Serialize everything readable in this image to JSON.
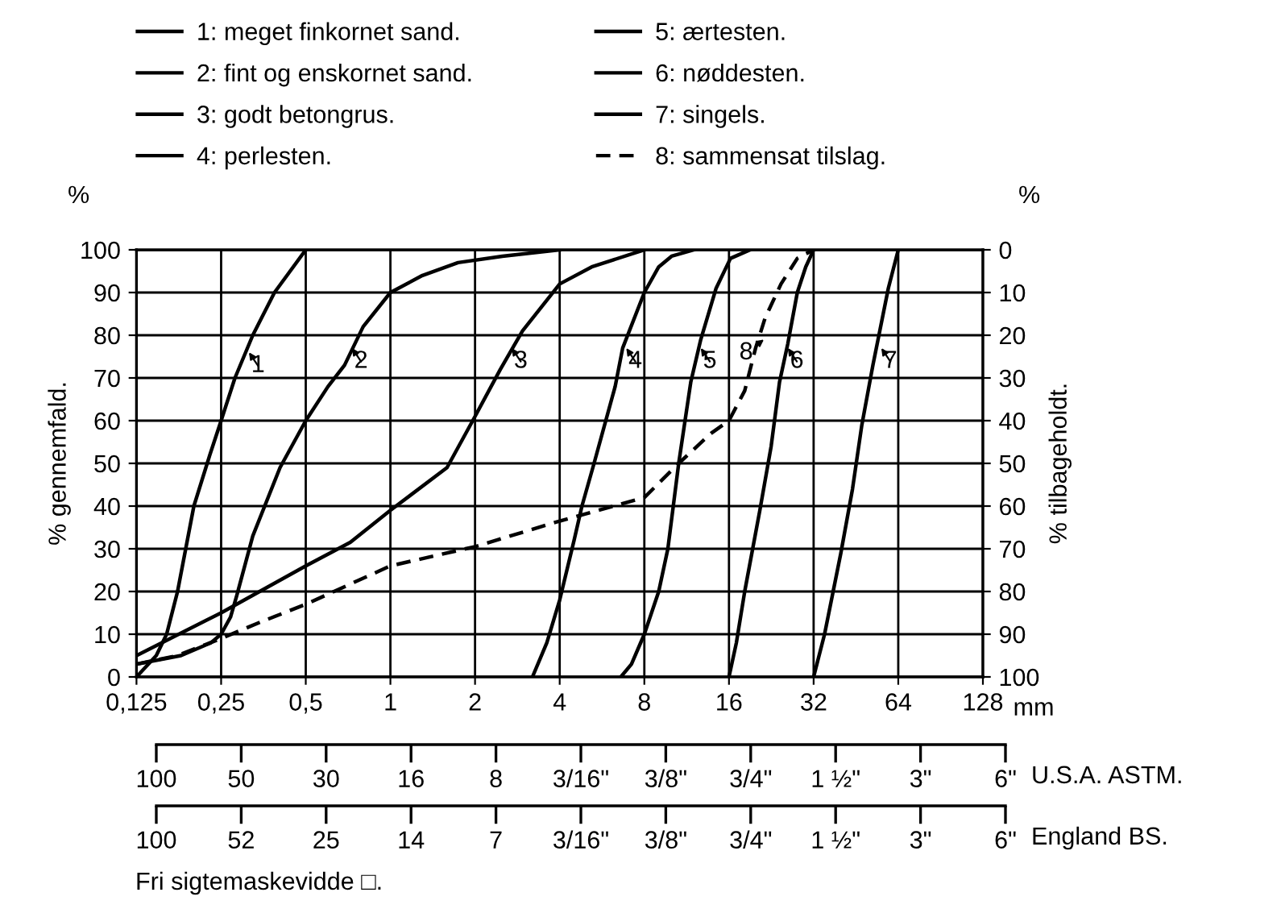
{
  "chart_data": [
    {
      "type": "line",
      "xlabel": "mm",
      "ylabel": "% gennemfald.",
      "y2label": "% tilbageholdt.",
      "log": "x",
      "grid": true,
      "legend": "top",
      "marker": "none",
      "xlim": [
        0.125,
        128
      ],
      "xticks": [
        {
          "value": 0.125,
          "label": "0,125"
        },
        {
          "value": 0.25,
          "label": "0,25"
        },
        {
          "value": 0.5,
          "label": "0,5"
        },
        1,
        2,
        4,
        8,
        16,
        32,
        64,
        128
      ],
      "ylim": [
        0,
        100
      ],
      "yticks": [
        0,
        10,
        20,
        30,
        40,
        50,
        60,
        70,
        80,
        90,
        100
      ],
      "y2lim": [
        100,
        0
      ],
      "y2ticks": [
        0,
        10,
        20,
        30,
        40,
        50,
        60,
        70,
        80,
        90,
        100
      ],
      "series": [
        {
          "name": "1: meget finkornet sand.",
          "color": "#000000",
          "line_style": "solid",
          "x": [
            0.125,
            0.147,
            0.16,
            0.175,
            0.2,
            0.228,
            0.25,
            0.28,
            0.324,
            0.387,
            0.5
          ],
          "values": [
            0,
            5,
            10,
            20,
            40,
            52,
            60,
            70,
            80,
            90,
            100
          ]
        },
        {
          "name": "2: fint og enskornet sand.",
          "color": "#000000",
          "line_style": "solid",
          "x": [
            0.125,
            0.18,
            0.23,
            0.25,
            0.27,
            0.284,
            0.324,
            0.405,
            0.5,
            0.6,
            0.687,
            0.8,
            1,
            1.3,
            1.74,
            2.5,
            4
          ],
          "values": [
            3,
            5,
            8,
            10,
            14,
            19,
            33,
            49,
            60,
            68,
            73,
            82,
            90,
            94,
            97,
            98.5,
            100
          ]
        },
        {
          "name": "3: godt betongrus.",
          "color": "#000000",
          "line_style": "solid",
          "x": [
            0.125,
            0.25,
            0.5,
            0.72,
            1,
            1.59,
            2,
            2.46,
            2.95,
            4,
            5.2,
            8
          ],
          "values": [
            5,
            15,
            26,
            31.5,
            39,
            49,
            61,
            72,
            81,
            92,
            96,
            100
          ]
        },
        {
          "name": "4: perlesten.",
          "color": "#000000",
          "line_style": "solid",
          "x": [
            3.2,
            3.6,
            4,
            4.5,
            4.8,
            5.3,
            6.3,
            6.7,
            8,
            9,
            10,
            12
          ],
          "values": [
            0,
            8,
            18,
            32,
            40,
            50,
            68,
            77,
            90,
            96,
            98.5,
            100
          ]
        },
        {
          "name": "5: ærtesten.",
          "color": "#000000",
          "line_style": "solid",
          "x": [
            6.6,
            7.2,
            8,
            9,
            9.7,
            10.6,
            11.7,
            12.7,
            14.4,
            16.2,
            19
          ],
          "values": [
            0,
            3,
            10,
            20,
            30,
            50,
            69,
            79,
            91,
            98,
            100
          ]
        },
        {
          "name": "6: nøddesten.",
          "color": "#000000",
          "line_style": "solid",
          "x": [
            16,
            17,
            18.2,
            20.6,
            22.6,
            24.2,
            25.9,
            28,
            30,
            32
          ],
          "values": [
            0,
            8,
            20,
            39,
            54,
            69,
            78,
            90,
            96,
            100
          ]
        },
        {
          "name": "7: singels.",
          "color": "#000000",
          "line_style": "solid",
          "x": [
            32,
            35,
            40,
            44,
            47.5,
            52,
            59,
            64
          ],
          "values": [
            0,
            10,
            29,
            44,
            59,
            73,
            91,
            100
          ]
        },
        {
          "name": "8: sammensat tilslag.",
          "color": "#000000",
          "line_style": "dashed",
          "x": [
            0.125,
            0.175,
            0.25,
            0.35,
            0.5,
            1,
            2,
            4,
            8,
            10.6,
            13.8,
            16,
            18.2,
            19.9,
            21.5,
            24.5,
            28,
            32
          ],
          "values": [
            3,
            5,
            9,
            13,
            17,
            26,
            30.5,
            36.5,
            42,
            50,
            57,
            60,
            67,
            77,
            84,
            92,
            98,
            100
          ]
        }
      ],
      "annotations": [
        {
          "text": "1",
          "x": 0.314,
          "y": 76
        },
        {
          "text": "2",
          "x": 0.73,
          "y": 77
        },
        {
          "text": "3",
          "x": 2.7,
          "y": 77
        },
        {
          "text": "4",
          "x": 6.9,
          "y": 77
        },
        {
          "text": "5",
          "x": 12.7,
          "y": 77
        },
        {
          "text": "6",
          "x": 25.9,
          "y": 77
        },
        {
          "text": "7",
          "x": 55.7,
          "y": 77
        },
        {
          "text": "8",
          "x": 21.3,
          "y": 79
        },
        "%",
        "%",
        "Fri sigtemaskevidde □."
      ]
    },
    {
      "type": "other",
      "xlabel": "U.S.A. ASTM.",
      "categories": [
        "100",
        "50",
        "30",
        "16",
        "8",
        "3/16\"",
        "3/8\"",
        "3/4\"",
        "1 ½\"",
        "3\"",
        "6\""
      ]
    },
    {
      "type": "other",
      "xlabel": "England BS.",
      "categories": [
        "100",
        "52",
        "25",
        "14",
        "7",
        "3/16\"",
        "3/8\"",
        "3/4\"",
        "1 ½\"",
        "3\"",
        "6\""
      ]
    }
  ]
}
